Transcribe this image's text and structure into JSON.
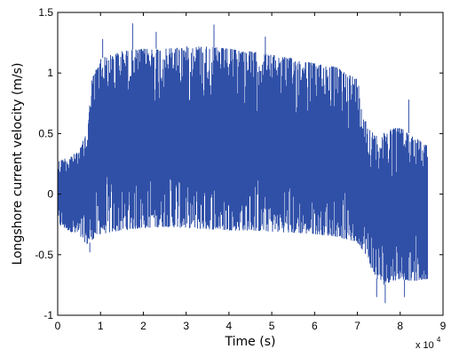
{
  "chart_data": {
    "type": "line",
    "title": "",
    "xlabel": "Time (s)",
    "ylabel": "Longshore current velocity (m/s)",
    "x_multiplier_label": "x 10",
    "x_multiplier_exponent": "4",
    "xlim": [
      0,
      9
    ],
    "ylim": [
      -1,
      1.5
    ],
    "x_ticks": [
      0,
      1,
      2,
      3,
      4,
      5,
      6,
      7,
      8,
      9
    ],
    "x_tick_labels": [
      "0",
      "1",
      "2",
      "3",
      "4",
      "5",
      "6",
      "7",
      "8",
      "9"
    ],
    "y_ticks": [
      -1,
      -0.5,
      0,
      0.5,
      1,
      1.5
    ],
    "y_tick_labels": [
      "-1",
      "-0.5",
      "0",
      "0.5",
      "1",
      "1.5"
    ],
    "grid": false,
    "legend": "none",
    "series_color": "#3050a8",
    "x_data_end": 8.64,
    "envelope_upper": {
      "x": [
        0,
        0.5,
        0.7,
        0.8,
        1,
        1.5,
        2,
        2.5,
        3,
        3.5,
        4,
        4.5,
        5,
        5.5,
        6,
        6.5,
        7,
        7.2,
        7.4,
        7.6,
        7.8,
        8,
        8.3,
        8.64
      ],
      "value": [
        0.27,
        0.35,
        0.55,
        0.95,
        1.12,
        1.18,
        1.2,
        1.2,
        1.22,
        1.22,
        1.2,
        1.18,
        1.15,
        1.12,
        1.08,
        1.05,
        0.95,
        0.6,
        0.48,
        0.5,
        0.55,
        0.55,
        0.48,
        0.4
      ]
    },
    "envelope_lower": {
      "x": [
        0,
        0.5,
        0.7,
        0.8,
        1,
        1.5,
        2,
        2.5,
        3,
        3.5,
        4,
        4.5,
        5,
        5.5,
        6,
        6.5,
        7,
        7.2,
        7.4,
        7.6,
        7.8,
        8,
        8.3,
        8.64
      ],
      "value": [
        -0.25,
        -0.35,
        -0.42,
        -0.38,
        -0.33,
        -0.3,
        -0.28,
        -0.27,
        -0.28,
        -0.29,
        -0.3,
        -0.3,
        -0.31,
        -0.32,
        -0.33,
        -0.35,
        -0.4,
        -0.5,
        -0.68,
        -0.75,
        -0.72,
        -0.7,
        -0.72,
        -0.7
      ]
    },
    "spikes_upper": [
      {
        "x": 1.05,
        "value": 1.28
      },
      {
        "x": 1.75,
        "value": 1.41
      },
      {
        "x": 2.3,
        "value": 1.34
      },
      {
        "x": 3.65,
        "value": 1.4
      },
      {
        "x": 4.85,
        "value": 1.3
      },
      {
        "x": 8.2,
        "value": 0.78
      }
    ],
    "spikes_lower": [
      {
        "x": 0.75,
        "value": -0.48
      },
      {
        "x": 7.45,
        "value": -0.85
      },
      {
        "x": 7.65,
        "value": -0.9
      },
      {
        "x": 8.1,
        "value": -0.85
      }
    ]
  }
}
